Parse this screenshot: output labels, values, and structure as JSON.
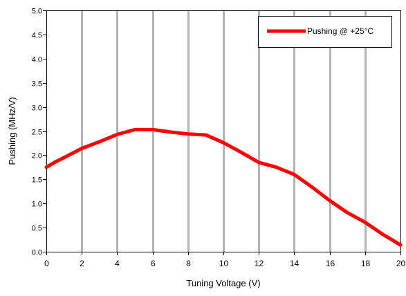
{
  "chart_data": {
    "type": "line",
    "title": "",
    "xlabel": "Tuning Voltage (V)",
    "ylabel": "Pushing (MHz/V)",
    "xlim": [
      0,
      20
    ],
    "ylim": [
      0,
      5
    ],
    "x_ticks": [
      "0",
      "2",
      "4",
      "6",
      "8",
      "10",
      "12",
      "14",
      "16",
      "18",
      "20"
    ],
    "y_ticks": [
      "0.0",
      "0.5",
      "1.0",
      "1.5",
      "2.0",
      "2.5",
      "3.0",
      "3.5",
      "4.0",
      "4.5",
      "5.0"
    ],
    "grid": "vertical",
    "legend_position": "top-right",
    "series": [
      {
        "name": "Pushing @ +25°C",
        "color": "#ff0000",
        "x": [
          0,
          0.5,
          1,
          2,
          3,
          4,
          5,
          6,
          7,
          8,
          9,
          10,
          11,
          12,
          13,
          14,
          15,
          16,
          17,
          18,
          19,
          20
        ],
        "y": [
          1.75,
          1.86,
          1.95,
          2.14,
          2.28,
          2.43,
          2.53,
          2.53,
          2.48,
          2.44,
          2.42,
          2.26,
          2.06,
          1.85,
          1.75,
          1.6,
          1.34,
          1.06,
          0.81,
          0.61,
          0.36,
          0.14
        ]
      }
    ]
  }
}
